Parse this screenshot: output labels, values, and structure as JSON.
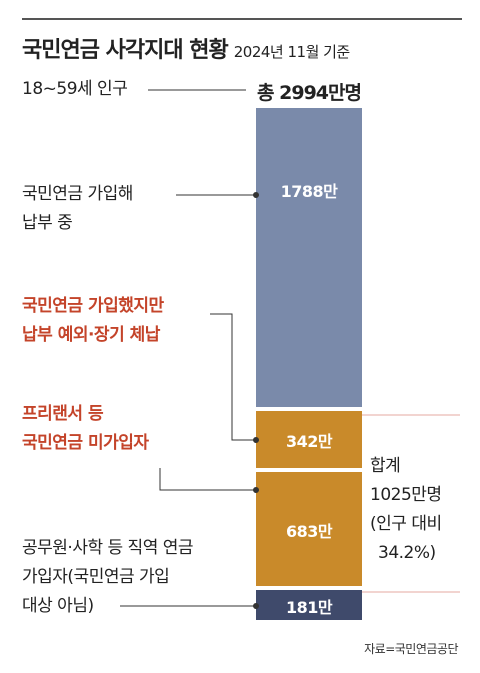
{
  "title": "국민연금 사각지대 현황",
  "subtitle": "2024년 11월 기준",
  "source": "자료=국민연금공단",
  "colors": {
    "paying": "#7a8aaa",
    "exempt": "#c98a2a",
    "not_enrolled": "#c98a2a",
    "public_pension": "#3f4a6b",
    "highlight_text": "#c4442a",
    "bracket": "#e6a8a0"
  },
  "labels": {
    "population": "18~59세 인구",
    "paying": [
      "국민연금 가입해",
      "납부 중"
    ],
    "exempt": [
      "국민연금 가입했지만",
      "납부 예외·장기 체납"
    ],
    "not_enrolled": [
      "프리랜서 등",
      "국민연금 미가입자"
    ],
    "public_pension": [
      "공무원·사학 등 직역 연금",
      "가입자(국민연금 가입",
      "대상 아님)"
    ]
  },
  "chart_data": {
    "type": "bar",
    "stacked": true,
    "unit": "만명",
    "total_label": "총 2994만명",
    "total": 2994,
    "segments": [
      {
        "value": 1788,
        "label": "1788만"
      },
      {
        "value": 342,
        "label": "342만"
      },
      {
        "value": 683,
        "label": "683만"
      },
      {
        "value": 181,
        "label": "181만"
      }
    ],
    "summary": [
      "합계",
      "1025만명",
      "(인구 대비",
      "34.2%)"
    ]
  }
}
